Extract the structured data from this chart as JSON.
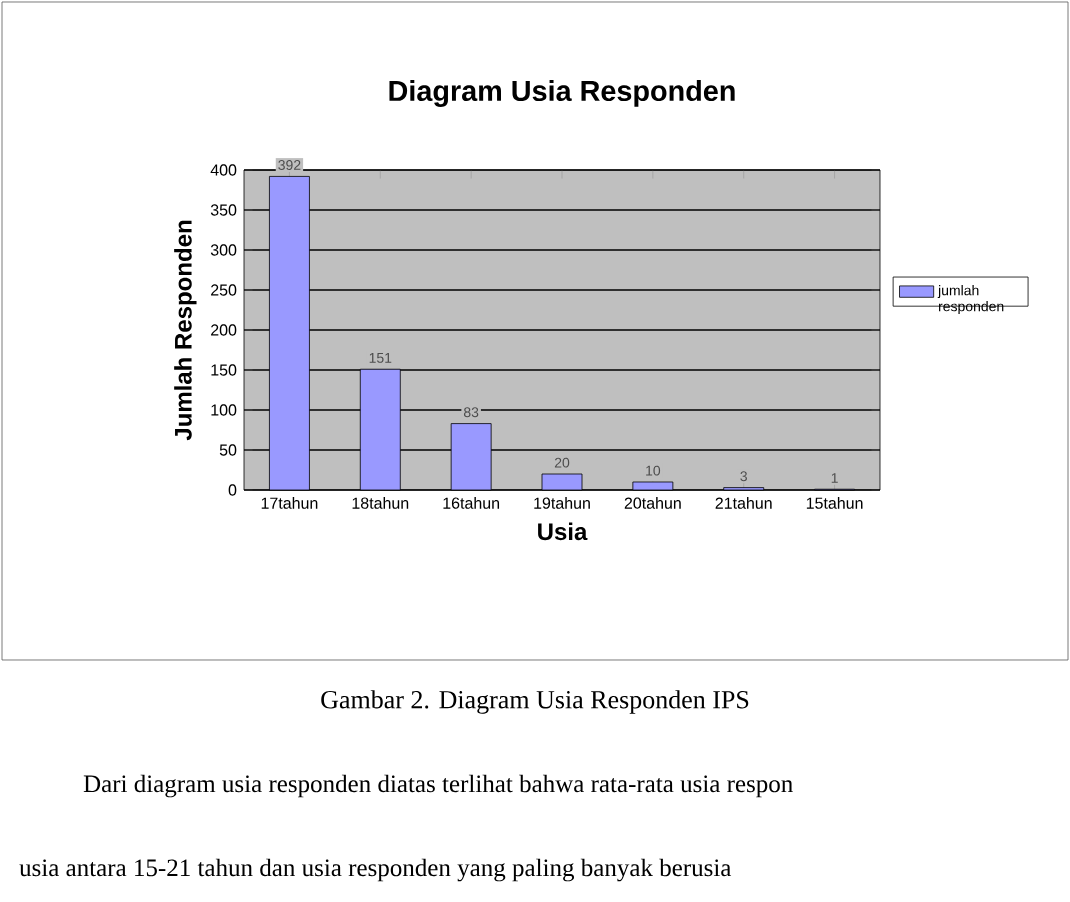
{
  "chart_data": {
    "type": "bar",
    "title": "Diagram Usia Responden",
    "xlabel": "Usia",
    "ylabel": "Jumlah Responden",
    "categories": [
      "17tahun",
      "18tahun",
      "16tahun",
      "19tahun",
      "20tahun",
      "21tahun",
      "15tahun"
    ],
    "series": [
      {
        "name": "jumlah responden",
        "color": "#9999ff",
        "values": [
          392,
          151,
          83,
          20,
          10,
          3,
          1
        ]
      }
    ],
    "ylim": [
      0,
      400
    ],
    "yticks": [
      0,
      50,
      100,
      150,
      200,
      250,
      300,
      350,
      400
    ],
    "grid": "y",
    "legend": "right",
    "data_labels": true,
    "annotations": [
      "Gambar 2.  Diagram Usia Responden IPS",
      "Dari diagram usia responden diatas terlihat bahwa rata-rata usia respon",
      "usia antara 15-21 tahun dan usia responden yang paling banyak berusia"
    ]
  }
}
